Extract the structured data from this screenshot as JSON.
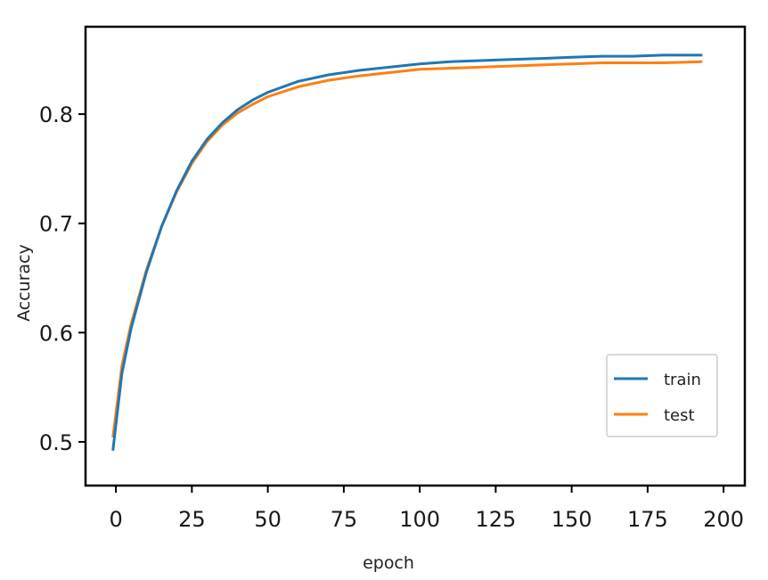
{
  "colors": {
    "train": "#1f77b4",
    "test": "#ff7f0e",
    "axis": "#000000",
    "legend_border": "#cccccc"
  },
  "chart_data": {
    "type": "line",
    "xlabel": "epoch",
    "ylabel": "Accuracy",
    "xlim": [
      -10,
      207
    ],
    "ylim": [
      0.46,
      0.88
    ],
    "xticks": [
      0,
      25,
      50,
      75,
      100,
      125,
      150,
      175,
      200
    ],
    "yticks": [
      0.5,
      0.6,
      0.7,
      0.8
    ],
    "xtick_labels": [
      "0",
      "25",
      "50",
      "75",
      "100",
      "125",
      "150",
      "175",
      "200"
    ],
    "ytick_labels": [
      "0.5",
      "0.6",
      "0.7",
      "0.8"
    ],
    "grid": false,
    "legend": {
      "placement": "lower-right",
      "entries": [
        "train",
        "test"
      ]
    },
    "series": [
      {
        "name": "train",
        "x": [
          -1,
          2,
          5,
          10,
          15,
          20,
          25,
          30,
          35,
          40,
          45,
          50,
          60,
          70,
          80,
          90,
          100,
          110,
          120,
          130,
          140,
          150,
          160,
          170,
          180,
          193
        ],
        "y": [
          0.492,
          0.563,
          0.604,
          0.655,
          0.697,
          0.73,
          0.757,
          0.777,
          0.792,
          0.804,
          0.813,
          0.82,
          0.83,
          0.836,
          0.84,
          0.843,
          0.846,
          0.848,
          0.849,
          0.85,
          0.851,
          0.852,
          0.853,
          0.853,
          0.854,
          0.854
        ]
      },
      {
        "name": "test",
        "x": [
          -1,
          2,
          5,
          10,
          15,
          20,
          25,
          30,
          35,
          40,
          45,
          50,
          60,
          70,
          80,
          90,
          100,
          110,
          120,
          130,
          140,
          150,
          160,
          170,
          180,
          193
        ],
        "y": [
          0.504,
          0.57,
          0.608,
          0.657,
          0.697,
          0.729,
          0.755,
          0.775,
          0.79,
          0.801,
          0.809,
          0.816,
          0.825,
          0.831,
          0.835,
          0.838,
          0.841,
          0.842,
          0.843,
          0.844,
          0.845,
          0.846,
          0.847,
          0.847,
          0.847,
          0.848
        ]
      }
    ]
  }
}
